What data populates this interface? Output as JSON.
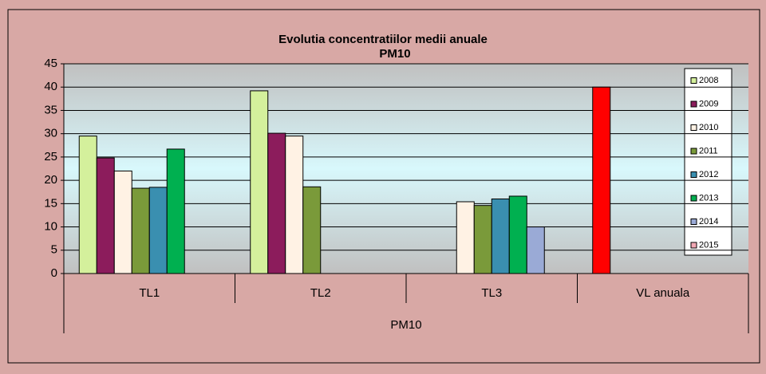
{
  "chart_data": {
    "type": "bar",
    "title": "Evolutia concentratiilor medii anuale",
    "subtitle": "PM10",
    "group_label": "PM10",
    "categories": [
      "TL1",
      "TL2",
      "TL3",
      "VL anuala"
    ],
    "series": [
      {
        "name": "2008",
        "color": "#d4f09c",
        "values": [
          29.5,
          39.2,
          null,
          40
        ],
        "highlight": {
          "category": 3,
          "color": "#ff0000"
        }
      },
      {
        "name": "2009",
        "color": "#8c1c5c",
        "values": [
          24.8,
          30.1,
          null,
          null
        ]
      },
      {
        "name": "2010",
        "color": "#fff2e4",
        "values": [
          22,
          29.5,
          15.4,
          null
        ]
      },
      {
        "name": "2011",
        "color": "#7a9a3a",
        "values": [
          18.3,
          18.6,
          14.6,
          null
        ]
      },
      {
        "name": "2012",
        "color": "#3a8fb0",
        "values": [
          18.5,
          null,
          16,
          null
        ]
      },
      {
        "name": "2013",
        "color": "#00b050",
        "values": [
          26.7,
          null,
          16.6,
          null
        ]
      },
      {
        "name": "2014",
        "color": "#9aaad6",
        "values": [
          null,
          null,
          10,
          null
        ]
      },
      {
        "name": "2015",
        "color": "#f2a8b4",
        "values": [
          null,
          null,
          null,
          null
        ]
      }
    ],
    "ylim": [
      0,
      45
    ],
    "yticks": [
      0,
      5,
      10,
      15,
      20,
      25,
      30,
      35,
      40,
      45
    ],
    "grid": true,
    "legend": "right"
  }
}
